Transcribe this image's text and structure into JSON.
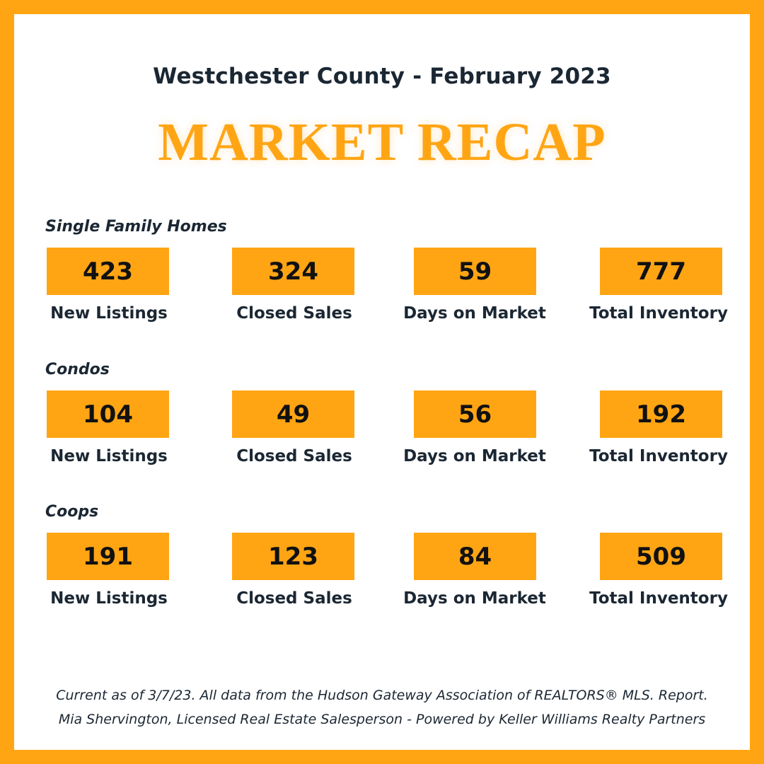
{
  "header": {
    "subtitle": "Westchester County - February 2023",
    "title": "MARKET RECAP"
  },
  "colors": {
    "accent": "#ffa514",
    "text": "#1b2733",
    "background": "#ffffff"
  },
  "sections": [
    {
      "label": "Single Family Homes",
      "stats": [
        {
          "value": "423",
          "label": "New Listings"
        },
        {
          "value": "324",
          "label": "Closed Sales"
        },
        {
          "value": "59",
          "label": "Days on Market"
        },
        {
          "value": "777",
          "label": "Total Inventory"
        }
      ]
    },
    {
      "label": "Condos",
      "stats": [
        {
          "value": "104",
          "label": "New Listings"
        },
        {
          "value": "49",
          "label": "Closed Sales"
        },
        {
          "value": "56",
          "label": "Days on Market"
        },
        {
          "value": "192",
          "label": "Total Inventory"
        }
      ]
    },
    {
      "label": "Coops",
      "stats": [
        {
          "value": "191",
          "label": "New Listings"
        },
        {
          "value": "123",
          "label": "Closed Sales"
        },
        {
          "value": "84",
          "label": "Days on Market"
        },
        {
          "value": "509",
          "label": "Total Inventory"
        }
      ]
    }
  ],
  "footer": {
    "line1": "Current as of 3/7/23. All data from the Hudson Gateway Association of REALTORS® MLS. Report.",
    "line2": "Mia Shervington, Licensed Real Estate Salesperson - Powered by Keller Williams Realty Partners"
  }
}
